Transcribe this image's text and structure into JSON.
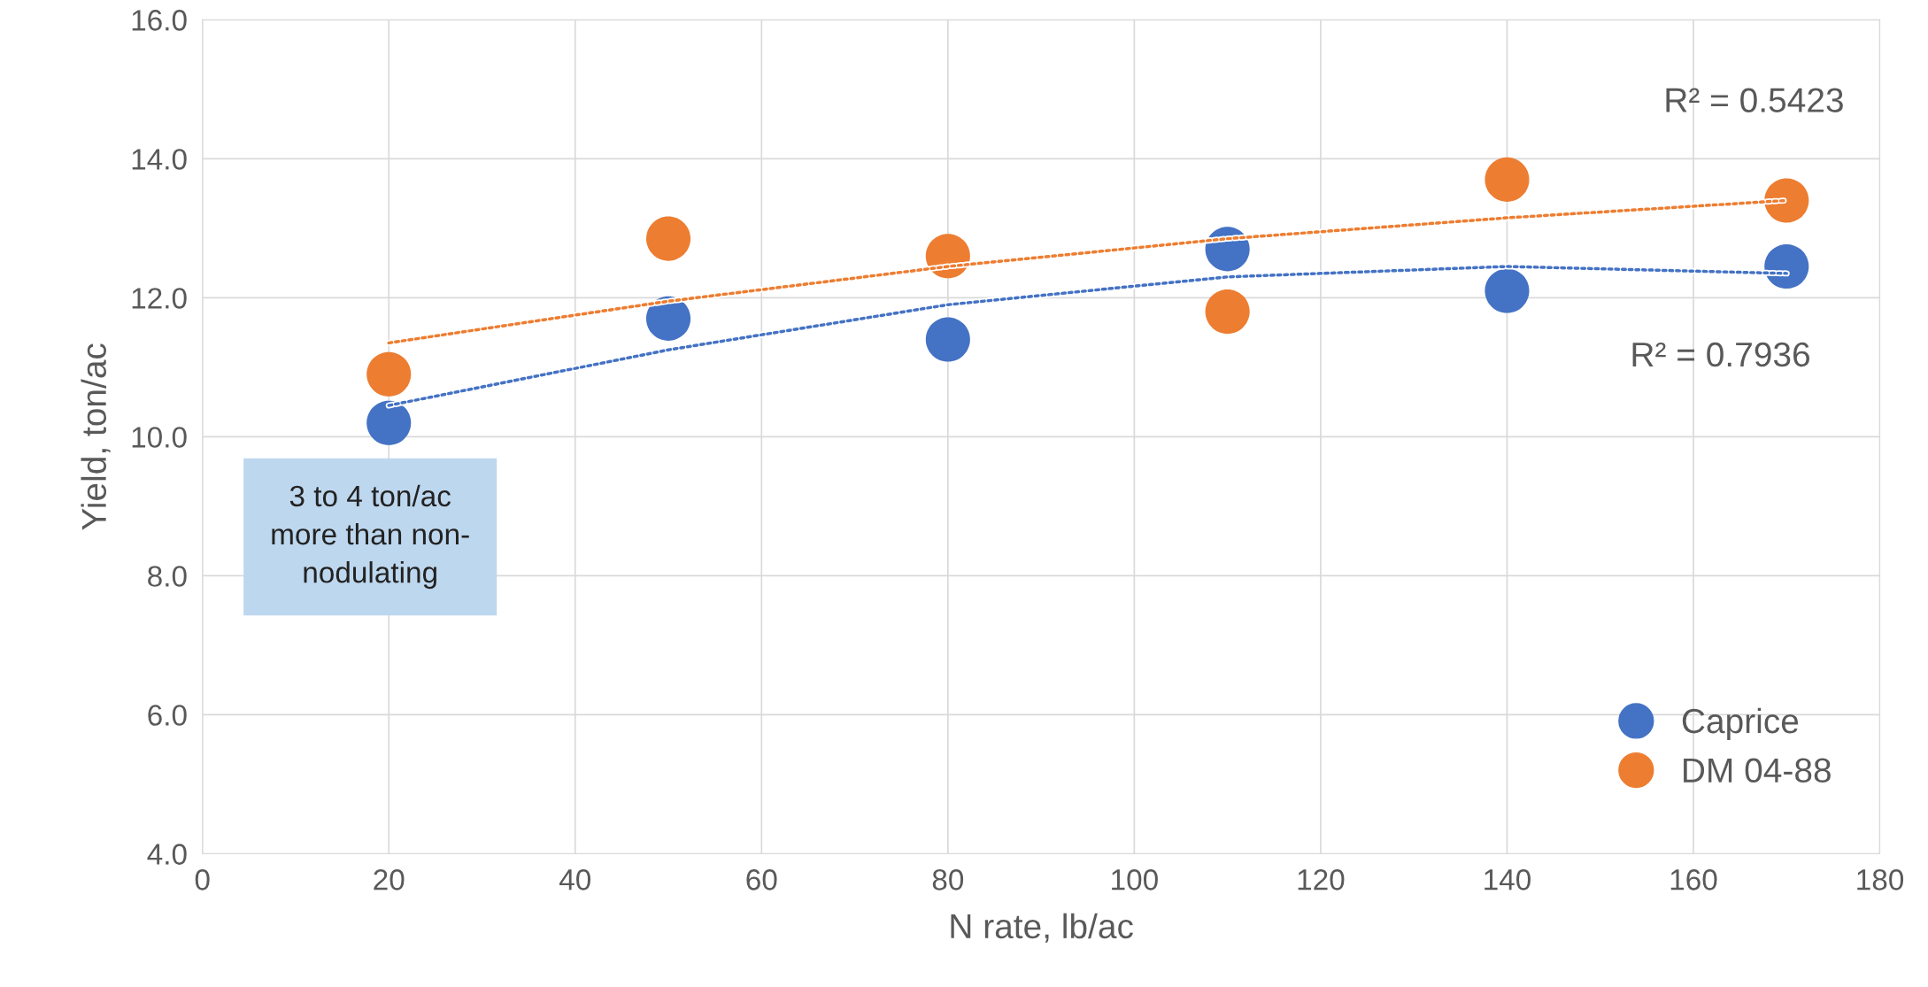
{
  "chart_data": {
    "type": "scatter",
    "xlabel": "N rate, lb/ac",
    "ylabel": "Yield, ton/ac",
    "x": [
      20,
      50,
      80,
      110,
      140,
      170
    ],
    "series": [
      {
        "name": "Caprice",
        "color": "#4472c4",
        "values": [
          10.2,
          11.7,
          11.4,
          12.7,
          12.1,
          12.45
        ]
      },
      {
        "name": "DM 04-88",
        "color": "#ed7d31",
        "values": [
          10.9,
          12.85,
          12.6,
          11.8,
          13.7,
          13.4
        ]
      },
      {
        "type": "line",
        "color": "#4472c4",
        "line_style": "dotted",
        "marker": "none",
        "x": [
          20,
          50,
          80,
          110,
          140,
          170
        ],
        "values": [
          10.45,
          11.25,
          11.9,
          12.3,
          12.45,
          12.35
        ]
      },
      {
        "type": "line",
        "color": "#ed7d31",
        "line_style": "dotted",
        "marker": "none",
        "x": [
          20,
          50,
          80,
          110,
          140,
          170
        ],
        "values": [
          11.35,
          11.95,
          12.45,
          12.85,
          13.15,
          13.4
        ]
      }
    ],
    "marker": "circle",
    "xlim": [
      0,
      180
    ],
    "xticks": [
      0,
      20,
      40,
      60,
      80,
      100,
      120,
      140,
      160,
      180
    ],
    "ylim": [
      4,
      16
    ],
    "yticks": [
      {
        "value": 4,
        "label": "4.0"
      },
      {
        "value": 6,
        "label": "6.0"
      },
      {
        "value": 8,
        "label": "8.0"
      },
      {
        "value": 10,
        "label": "10.0"
      },
      {
        "value": 12,
        "label": "12.0"
      },
      {
        "value": 14,
        "label": "14.0"
      },
      {
        "value": 16,
        "label": "16.0"
      }
    ],
    "grid": true,
    "legend": "bottom right",
    "annotations": [
      "R² = 0.5423",
      "R² = 0.7936",
      "3 to 4 ton/ac\nmore than non-\nnodulating"
    ]
  }
}
